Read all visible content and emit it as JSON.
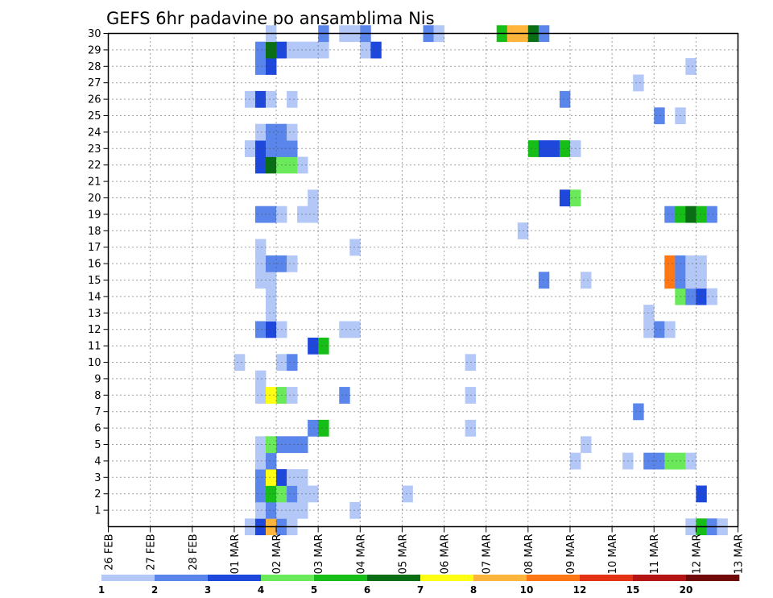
{
  "chart_data": {
    "type": "heatmap",
    "title": "GEFS 6hr padavine po ansamblima Nis",
    "xlabel": "",
    "ylabel": "",
    "x_tick_labels": [
      "26 FEB",
      "27 FEB",
      "28 FEB",
      "01 MAR",
      "02 MAR",
      "03 MAR",
      "04 MAR",
      "05 MAR",
      "06 MAR",
      "07 MAR",
      "08 MAR",
      "09 MAR",
      "10 MAR",
      "11 MAR",
      "12 MAR",
      "13 MAR"
    ],
    "x_range_days": [
      0,
      15
    ],
    "time_step_hours": 6,
    "y_tick_labels": [
      "1",
      "2",
      "3",
      "4",
      "5",
      "6",
      "7",
      "8",
      "9",
      "10",
      "11",
      "12",
      "13",
      "14",
      "15",
      "16",
      "17",
      "18",
      "19",
      "20",
      "21",
      "22",
      "23",
      "24",
      "25",
      "26",
      "27",
      "28",
      "29",
      "30"
    ],
    "y_range": [
      0,
      30
    ],
    "grid": "dotted",
    "colorbar": {
      "levels": [
        1,
        2,
        3,
        4,
        5,
        6,
        7,
        8,
        10,
        12,
        15,
        20
      ],
      "colors": [
        "#b4c8f8",
        "#5a86ec",
        "#1e48dc",
        "#6aea5a",
        "#18be18",
        "#0a6e14",
        "#ffff14",
        "#ffb43c",
        "#ff7814",
        "#e43214",
        "#b41414",
        "#700a0a"
      ],
      "labels": [
        "1",
        "2",
        "3",
        "4",
        "5",
        "6",
        "7",
        "8",
        "10",
        "12",
        "15",
        "20"
      ]
    },
    "cells": [
      [
        0,
        13,
        1
      ],
      [
        0,
        14,
        3
      ],
      [
        0,
        15,
        8
      ],
      [
        0,
        16,
        2
      ],
      [
        0,
        17,
        1
      ],
      [
        0,
        55,
        1
      ],
      [
        0,
        56,
        5
      ],
      [
        0,
        57,
        2
      ],
      [
        0,
        58,
        1
      ],
      [
        0,
        64,
        1
      ],
      [
        0,
        65,
        1
      ],
      [
        0,
        66,
        1
      ],
      [
        0,
        67,
        1
      ],
      [
        0,
        68,
        2
      ],
      [
        0,
        69,
        1
      ],
      [
        1,
        14,
        1
      ],
      [
        1,
        15,
        2
      ],
      [
        1,
        16,
        1
      ],
      [
        1,
        17,
        1
      ],
      [
        1,
        18,
        1
      ],
      [
        1,
        23,
        1
      ],
      [
        2,
        14,
        2
      ],
      [
        2,
        15,
        5
      ],
      [
        2,
        16,
        4
      ],
      [
        2,
        17,
        2
      ],
      [
        2,
        18,
        1
      ],
      [
        2,
        19,
        1
      ],
      [
        2,
        28,
        1
      ],
      [
        2,
        56,
        3
      ],
      [
        3,
        14,
        2
      ],
      [
        3,
        15,
        7
      ],
      [
        3,
        16,
        3
      ],
      [
        3,
        17,
        1
      ],
      [
        3,
        18,
        1
      ],
      [
        3,
        70,
        1
      ],
      [
        4,
        14,
        1
      ],
      [
        4,
        15,
        2
      ],
      [
        4,
        44,
        1
      ],
      [
        4,
        49,
        1
      ],
      [
        4,
        51,
        2
      ],
      [
        4,
        52,
        2
      ],
      [
        4,
        53,
        4
      ],
      [
        4,
        54,
        4
      ],
      [
        4,
        55,
        1
      ],
      [
        5,
        14,
        1
      ],
      [
        5,
        15,
        4
      ],
      [
        5,
        16,
        2
      ],
      [
        5,
        17,
        2
      ],
      [
        5,
        18,
        2
      ],
      [
        5,
        45,
        1
      ],
      [
        5,
        74,
        1
      ],
      [
        5,
        75,
        1
      ],
      [
        6,
        19,
        2
      ],
      [
        6,
        20,
        5
      ],
      [
        6,
        34,
        1
      ],
      [
        7,
        50,
        2
      ],
      [
        8,
        14,
        1
      ],
      [
        8,
        15,
        7
      ],
      [
        8,
        16,
        4
      ],
      [
        8,
        17,
        1
      ],
      [
        8,
        22,
        2
      ],
      [
        8,
        34,
        1
      ],
      [
        9,
        14,
        1
      ],
      [
        10,
        12,
        1
      ],
      [
        10,
        16,
        1
      ],
      [
        10,
        17,
        2
      ],
      [
        10,
        34,
        1
      ],
      [
        10,
        72,
        2
      ],
      [
        10,
        73,
        1
      ],
      [
        10,
        74,
        1
      ],
      [
        11,
        19,
        3
      ],
      [
        11,
        20,
        5
      ],
      [
        12,
        14,
        2
      ],
      [
        12,
        15,
        3
      ],
      [
        12,
        16,
        1
      ],
      [
        12,
        22,
        1
      ],
      [
        12,
        23,
        1
      ],
      [
        12,
        51,
        1
      ],
      [
        12,
        52,
        2
      ],
      [
        12,
        53,
        1
      ],
      [
        12,
        67,
        2
      ],
      [
        12,
        68,
        1
      ],
      [
        13,
        15,
        1
      ],
      [
        13,
        51,
        1
      ],
      [
        14,
        15,
        1
      ],
      [
        14,
        54,
        4
      ],
      [
        14,
        55,
        2
      ],
      [
        14,
        56,
        3
      ],
      [
        14,
        57,
        1
      ],
      [
        15,
        14,
        1
      ],
      [
        15,
        15,
        1
      ],
      [
        15,
        41,
        2
      ],
      [
        15,
        45,
        1
      ],
      [
        15,
        53,
        9
      ],
      [
        15,
        54,
        2
      ],
      [
        15,
        55,
        1
      ],
      [
        15,
        56,
        1
      ],
      [
        15,
        69,
        2
      ],
      [
        15,
        70,
        2
      ],
      [
        16,
        14,
        1
      ],
      [
        16,
        15,
        2
      ],
      [
        16,
        16,
        2
      ],
      [
        16,
        17,
        1
      ],
      [
        16,
        53,
        9
      ],
      [
        16,
        54,
        2
      ],
      [
        16,
        55,
        1
      ],
      [
        16,
        56,
        1
      ],
      [
        16,
        69,
        2
      ],
      [
        16,
        70,
        2
      ],
      [
        17,
        14,
        1
      ],
      [
        17,
        23,
        1
      ],
      [
        17,
        72,
        2
      ],
      [
        17,
        73,
        1
      ],
      [
        17,
        74,
        1
      ],
      [
        17,
        75,
        5
      ],
      [
        18,
        39,
        1
      ],
      [
        19,
        14,
        2
      ],
      [
        19,
        15,
        2
      ],
      [
        19,
        16,
        1
      ],
      [
        19,
        18,
        1
      ],
      [
        19,
        19,
        1
      ],
      [
        19,
        53,
        2
      ],
      [
        19,
        54,
        5
      ],
      [
        19,
        55,
        6
      ],
      [
        19,
        56,
        5
      ],
      [
        19,
        57,
        2
      ],
      [
        20,
        19,
        1
      ],
      [
        20,
        43,
        3
      ],
      [
        20,
        44,
        4
      ],
      [
        22,
        14,
        3
      ],
      [
        22,
        15,
        6
      ],
      [
        22,
        16,
        4
      ],
      [
        22,
        17,
        4
      ],
      [
        22,
        18,
        1
      ],
      [
        23,
        13,
        1
      ],
      [
        23,
        14,
        3
      ],
      [
        23,
        15,
        2
      ],
      [
        23,
        16,
        2
      ],
      [
        23,
        17,
        2
      ],
      [
        23,
        40,
        5
      ],
      [
        23,
        41,
        3
      ],
      [
        23,
        42,
        3
      ],
      [
        23,
        43,
        5
      ],
      [
        23,
        44,
        1
      ],
      [
        24,
        14,
        1
      ],
      [
        24,
        15,
        2
      ],
      [
        24,
        16,
        2
      ],
      [
        24,
        17,
        1
      ],
      [
        24,
        74,
        1
      ],
      [
        25,
        52,
        2
      ],
      [
        25,
        54,
        1
      ],
      [
        25,
        73,
        1
      ],
      [
        26,
        13,
        1
      ],
      [
        26,
        14,
        3
      ],
      [
        26,
        15,
        1
      ],
      [
        26,
        17,
        1
      ],
      [
        26,
        43,
        2
      ],
      [
        27,
        50,
        1
      ],
      [
        28,
        14,
        2
      ],
      [
        28,
        15,
        3
      ],
      [
        28,
        55,
        1
      ],
      [
        29,
        14,
        2
      ],
      [
        29,
        15,
        6
      ],
      [
        29,
        16,
        3
      ],
      [
        29,
        17,
        1
      ],
      [
        29,
        18,
        1
      ],
      [
        29,
        19,
        1
      ],
      [
        29,
        20,
        1
      ],
      [
        29,
        24,
        1
      ],
      [
        29,
        25,
        3
      ],
      [
        29,
        68,
        1
      ],
      [
        29,
        69,
        6
      ],
      [
        29,
        70,
        4
      ],
      [
        29,
        71,
        8
      ],
      [
        30,
        15,
        1
      ],
      [
        30,
        20,
        2
      ],
      [
        30,
        22,
        1
      ],
      [
        30,
        23,
        1
      ],
      [
        30,
        24,
        2
      ],
      [
        30,
        30,
        2
      ],
      [
        30,
        31,
        1
      ],
      [
        30,
        37,
        5
      ],
      [
        30,
        38,
        8
      ],
      [
        30,
        39,
        8
      ],
      [
        30,
        40,
        6
      ],
      [
        30,
        41,
        2
      ]
    ]
  }
}
